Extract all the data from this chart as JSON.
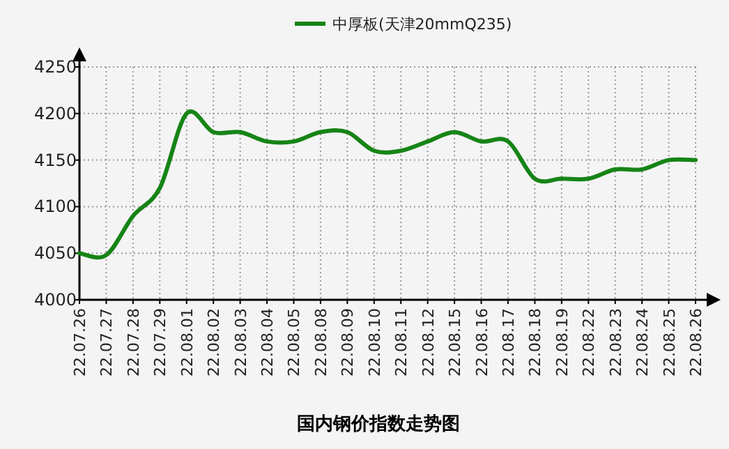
{
  "chart_data": {
    "type": "line",
    "title": "国内钢价指数走势图",
    "categories": [
      "22.07.26",
      "22.07.27",
      "22.07.28",
      "22.07.29",
      "22.08.01",
      "22.08.02",
      "22.08.03",
      "22.08.04",
      "22.08.05",
      "22.08.08",
      "22.08.09",
      "22.08.10",
      "22.08.11",
      "22.08.12",
      "22.08.15",
      "22.08.16",
      "22.08.17",
      "22.08.18",
      "22.08.19",
      "22.08.22",
      "22.08.23",
      "22.08.24",
      "22.08.25",
      "22.08.26"
    ],
    "series": [
      {
        "name": "中厚板(天津20mmQ235)",
        "color": "#168416",
        "values": [
          4050,
          4048,
          4090,
          4120,
          4200,
          4180,
          4180,
          4170,
          4170,
          4180,
          4180,
          4160,
          4160,
          4170,
          4180,
          4170,
          4170,
          4130,
          4130,
          4130,
          4140,
          4140,
          4150,
          4150
        ]
      }
    ],
    "ylim": [
      4000,
      4250
    ],
    "yticks": [
      4000,
      4050,
      4100,
      4150,
      4200,
      4250
    ],
    "grid": true,
    "legend": "top"
  }
}
